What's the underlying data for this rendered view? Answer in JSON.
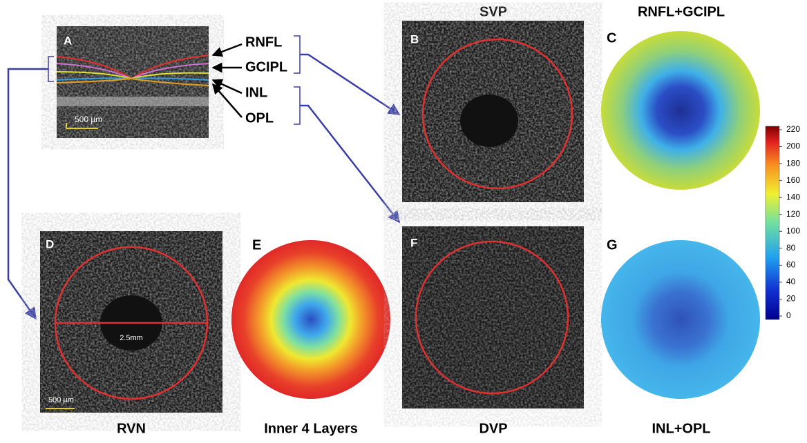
{
  "panels": {
    "a": {
      "letter": "A",
      "scale": "500 µm",
      "layers": [
        "RNFL",
        "GCIPL",
        "INL",
        "OPL"
      ]
    },
    "b": {
      "letter": "B",
      "title": "SVP"
    },
    "c": {
      "letter": "C",
      "title": "RNFL+GCIPL"
    },
    "d": {
      "letter": "D",
      "title": "RVN",
      "scale": "500 µm",
      "diameter": "2.5mm"
    },
    "e": {
      "letter": "E",
      "title": "Inner 4 Layers"
    },
    "f": {
      "letter": "F",
      "title": "DVP"
    },
    "g": {
      "letter": "G",
      "title": "INL+OPL"
    }
  },
  "colorbar": {
    "ticks": [
      0,
      20,
      40,
      60,
      80,
      100,
      120,
      140,
      160,
      180,
      200,
      220
    ]
  }
}
